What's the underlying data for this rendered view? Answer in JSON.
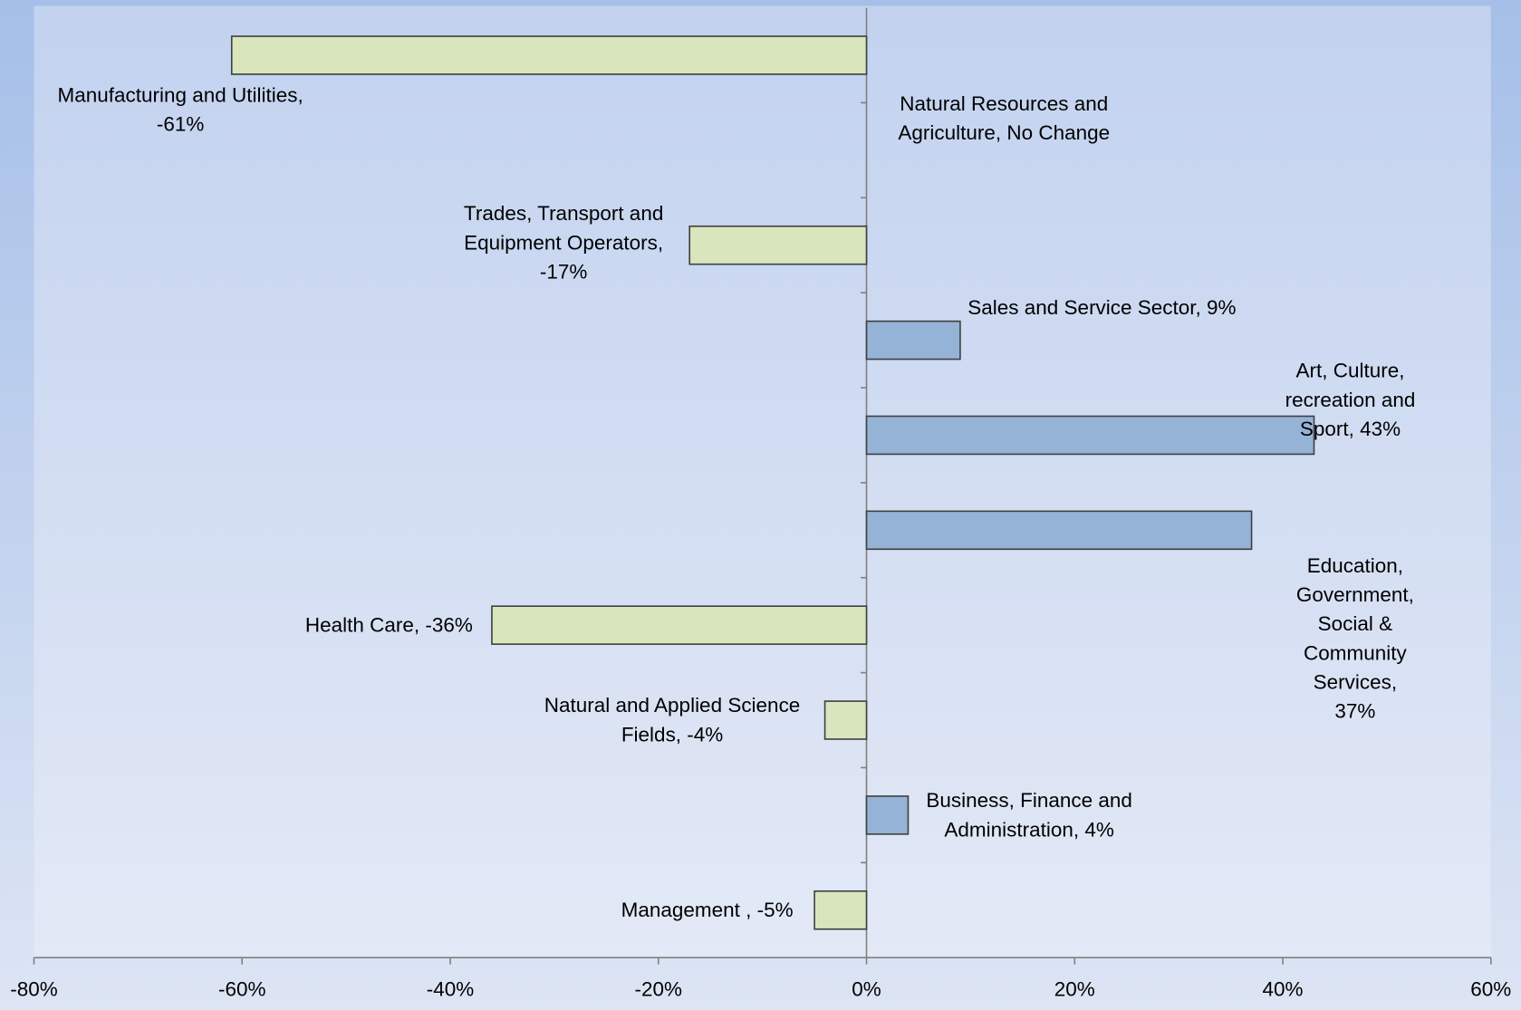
{
  "chart_data": {
    "type": "bar",
    "orientation": "horizontal",
    "values": [
      -61,
      0,
      -17,
      9,
      43,
      37,
      -36,
      -4,
      4,
      -5
    ],
    "value_labels": [
      "Manufacturing and Utilities,\n-61%",
      "Natural Resources and\nAgriculture, No Change",
      "Trades, Transport and\nEquipment Operators,\n-17%",
      "Sales and Service Sector, 9%",
      "Art, Culture, recreation and\nSport, 43%",
      "Education, Government,\nSocial & Community Services,\n37%",
      "Health Care, -36%",
      "Natural and Applied Science\nFields, -4%",
      "Business, Finance and\nAdministration, 4%",
      "Management , -5%"
    ],
    "negative_color": "#d9e5bc",
    "positive_color": "#95b3d7",
    "xlim": [
      -80,
      60
    ],
    "xticks": [
      {
        "value": -80,
        "label": "-80%"
      },
      {
        "value": -60,
        "label": "-60%"
      },
      {
        "value": -40,
        "label": "-40%"
      },
      {
        "value": -20,
        "label": "-20%"
      },
      {
        "value": 0,
        "label": "0%"
      },
      {
        "value": 20,
        "label": "20%"
      },
      {
        "value": 40,
        "label": "40%"
      },
      {
        "value": 60,
        "label": "60%"
      }
    ],
    "grid": false
  }
}
